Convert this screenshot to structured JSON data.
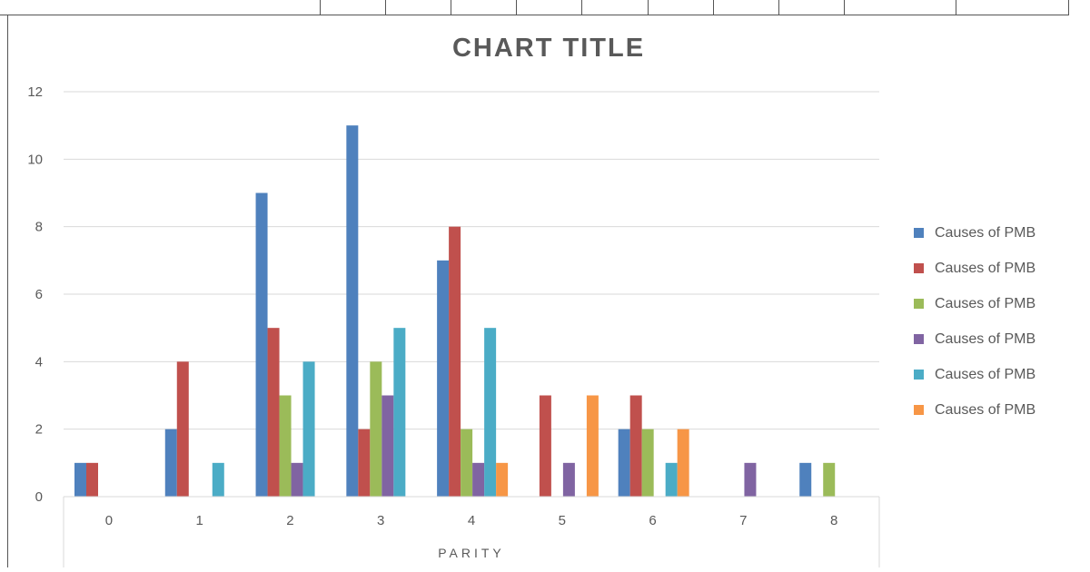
{
  "chart_data": {
    "type": "bar",
    "title": "CHART TITLE",
    "xlabel": "PARITY",
    "ylabel": "",
    "categories": [
      "0",
      "1",
      "2",
      "3",
      "4",
      "5",
      "6",
      "7",
      "8"
    ],
    "ylim": [
      0,
      12
    ],
    "yticks": [
      0,
      2,
      4,
      6,
      8,
      10,
      12
    ],
    "grid": true,
    "legend_position": "right",
    "series": [
      {
        "name": "Causes of PMB",
        "color": "#4F81BD",
        "values": [
          1,
          2,
          9,
          11,
          7,
          0,
          2,
          0,
          1
        ]
      },
      {
        "name": "Causes of PMB",
        "color": "#C0504D",
        "values": [
          1,
          4,
          5,
          2,
          8,
          3,
          3,
          0,
          0
        ]
      },
      {
        "name": "Causes of PMB",
        "color": "#9BBB59",
        "values": [
          0,
          0,
          3,
          4,
          2,
          0,
          2,
          0,
          1
        ]
      },
      {
        "name": "Causes of PMB",
        "color": "#8064A2",
        "values": [
          0,
          0,
          1,
          3,
          1,
          1,
          0,
          1,
          0
        ]
      },
      {
        "name": "Causes of PMB",
        "color": "#4BACC6",
        "values": [
          0,
          1,
          4,
          5,
          5,
          0,
          1,
          0,
          0
        ]
      },
      {
        "name": "Causes of PMB",
        "color": "#F79646",
        "values": [
          0,
          0,
          0,
          0,
          1,
          3,
          2,
          0,
          0
        ]
      }
    ]
  }
}
